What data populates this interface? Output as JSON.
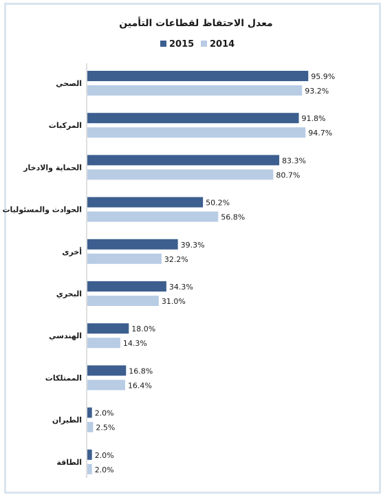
{
  "chart_data": {
    "type": "bar",
    "orientation": "horizontal",
    "title": "معدل الاحتفاظ لقطاعات التأمين",
    "categories": [
      "الصحي",
      "المركبات",
      "الحماية والادخار",
      "الحوادث والمسئوليات",
      "أخرى",
      "البحري",
      "الهندسي",
      "الممتلكات",
      "الطيران",
      "الطاقة"
    ],
    "series": [
      {
        "name": "2015",
        "color": "#3d5f8f",
        "values": [
          95.9,
          91.8,
          83.3,
          50.2,
          39.3,
          34.3,
          18.0,
          16.8,
          2.0,
          2.0
        ],
        "labels": [
          "95.9%",
          "91.8%",
          "83.3%",
          "50.2%",
          "39.3%",
          "34.3%",
          "18.0%",
          "16.8%",
          "2.0%",
          "2.0%"
        ]
      },
      {
        "name": "2014",
        "color": "#b8cce4",
        "values": [
          93.2,
          94.7,
          80.7,
          56.8,
          32.2,
          31.0,
          14.3,
          16.4,
          2.5,
          2.0
        ],
        "labels": [
          "93.2%",
          "94.7%",
          "80.7%",
          "56.8%",
          "32.2%",
          "31.0%",
          "14.3%",
          "16.4%",
          "2.5%",
          "2.0%"
        ]
      }
    ],
    "legend_position": "top-center",
    "xlim": [
      0,
      100
    ],
    "grid": false
  }
}
